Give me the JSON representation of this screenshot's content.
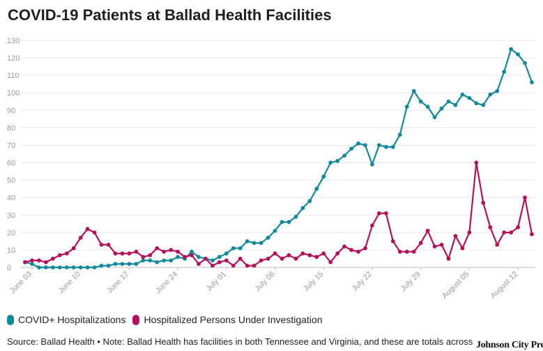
{
  "chart_data": {
    "type": "line",
    "title": "COVID-19 Patients at Ballad Health Facilities",
    "xlabel": "",
    "ylabel": "",
    "ylim": [
      0,
      130
    ],
    "yticks": [
      0,
      10,
      20,
      30,
      40,
      50,
      60,
      70,
      80,
      90,
      100,
      110,
      120,
      130
    ],
    "xtick_labels": [
      {
        "label": "June 03",
        "index": 1
      },
      {
        "label": "June 10",
        "index": 8
      },
      {
        "label": "June 17",
        "index": 15
      },
      {
        "label": "June 24",
        "index": 22
      },
      {
        "label": "July 01",
        "index": 29
      },
      {
        "label": "July 08",
        "index": 36
      },
      {
        "label": "July 15",
        "index": 43
      },
      {
        "label": "July 22",
        "index": 50
      },
      {
        "label": "July 29",
        "index": 57
      },
      {
        "label": "August 05",
        "index": 64
      },
      {
        "label": "August 12",
        "index": 71
      }
    ],
    "series": [
      {
        "name": "COVID+ Hospitalizations",
        "color": "#12899a",
        "values": [
          3,
          2,
          0,
          0,
          0,
          0,
          0,
          0,
          0,
          0,
          0,
          1,
          1,
          2,
          2,
          2,
          2,
          4,
          4,
          3,
          4,
          4,
          6,
          5,
          9,
          6,
          5,
          4,
          6,
          8,
          11,
          11,
          15,
          14,
          14,
          17,
          21,
          26,
          26,
          29,
          34,
          38,
          45,
          52,
          60,
          61,
          64,
          68,
          71,
          70,
          59,
          70,
          69,
          69,
          76,
          92,
          101,
          95,
          92,
          86,
          91,
          95,
          93,
          99,
          97,
          94,
          93,
          99,
          101,
          112,
          125,
          122,
          117,
          106
        ]
      },
      {
        "name": "Hospitalized Persons Under Investigation",
        "color": "#b5115b",
        "values": [
          3,
          4,
          4,
          3,
          5,
          7,
          8,
          11,
          17,
          22,
          20,
          13,
          13,
          8,
          8,
          8,
          9,
          6,
          7,
          11,
          9,
          10,
          9,
          6,
          7,
          2,
          5,
          1,
          3,
          4,
          1,
          5,
          1,
          1,
          4,
          5,
          8,
          5,
          7,
          5,
          8,
          7,
          6,
          8,
          3,
          8,
          12,
          10,
          9,
          11,
          24,
          31,
          31,
          15,
          9,
          9,
          9,
          14,
          21,
          12,
          13,
          5,
          18,
          11,
          20,
          60,
          37,
          23,
          13,
          20,
          20,
          23,
          40,
          19
        ]
      }
    ],
    "grid": true,
    "legend_position": "bottom-left"
  },
  "footer": {
    "source": "Source: Ballad Health • Note: Ballad Health has facilities in both Tennessee and Virginia, and these are totals across",
    "brand": "Johnson City Press"
  }
}
